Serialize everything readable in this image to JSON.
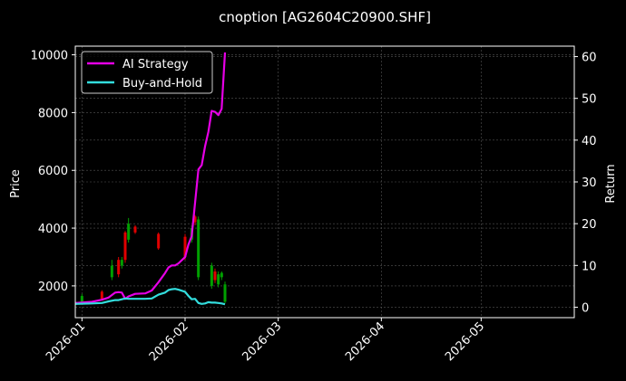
{
  "chart_data": {
    "type": "line",
    "title": "cnoption [AG2604C20900.SHF]",
    "ylabel_left": "Price",
    "ylabel_right": "Return",
    "x_ticks": [
      "2026-01",
      "2026-02",
      "2026-03",
      "2026-04",
      "2026-05"
    ],
    "y_left_ticks": [
      2000,
      4000,
      6000,
      8000,
      10000
    ],
    "y_right_ticks": [
      0,
      10,
      20,
      30,
      40,
      50,
      60
    ],
    "xlim": [
      "2025-12-30",
      "2026-05-29"
    ],
    "ylim_left": [
      900,
      10300
    ],
    "ylim_right": [
      -2.5,
      62.5
    ],
    "grid": true,
    "legend": {
      "placement": "top-left"
    },
    "colors": {
      "background": "#000000",
      "up_candle": "#00a000",
      "down_candle": "#e00000",
      "ai_strategy": "#e600e6",
      "buy_and_hold": "#33dddd",
      "grid": "#555555",
      "axis": "#ffffff"
    },
    "series": [
      {
        "name": "AI Strategy",
        "x": [
          "2025-12-30",
          "2026-01-04",
          "2026-01-07",
          "2026-01-09",
          "2026-01-11",
          "2026-01-12",
          "2026-01-13",
          "2026-01-14",
          "2026-01-15",
          "2026-01-17",
          "2026-01-20",
          "2026-01-22",
          "2026-01-24",
          "2026-01-26",
          "2026-01-27",
          "2026-01-28",
          "2026-01-29",
          "2026-01-30",
          "2026-02-01",
          "2026-02-02",
          "2026-02-03",
          "2026-02-04",
          "2026-02-05",
          "2026-02-06",
          "2026-02-07",
          "2026-02-08",
          "2026-02-09",
          "2026-02-10",
          "2026-02-11",
          "2026-02-12",
          "2026-02-13"
        ],
        "values": [
          1.0,
          1.3,
          1.8,
          2.3,
          3.5,
          3.6,
          3.5,
          2.0,
          2.6,
          3.2,
          3.3,
          4.0,
          6.0,
          8.2,
          9.5,
          10.0,
          10.0,
          10.5,
          12.0,
          15.0,
          17.0,
          25.0,
          33.0,
          34.0,
          38.5,
          42.0,
          47.0,
          46.8,
          46.0,
          47.5,
          61.0
        ]
      },
      {
        "name": "Buy-and-Hold",
        "x": [
          "2025-12-30",
          "2026-01-04",
          "2026-01-07",
          "2026-01-09",
          "2026-01-11",
          "2026-01-12",
          "2026-01-13",
          "2026-01-14",
          "2026-01-15",
          "2026-01-17",
          "2026-01-20",
          "2026-01-22",
          "2026-01-24",
          "2026-01-26",
          "2026-01-27",
          "2026-01-28",
          "2026-01-29",
          "2026-01-30",
          "2026-02-01",
          "2026-02-02",
          "2026-02-03",
          "2026-02-04",
          "2026-02-05",
          "2026-02-06",
          "2026-02-07",
          "2026-02-08",
          "2026-02-09",
          "2026-02-10",
          "2026-02-11",
          "2026-02-12",
          "2026-02-13"
        ],
        "values": [
          0.8,
          0.9,
          1.0,
          1.4,
          1.7,
          1.7,
          1.9,
          2.1,
          2.0,
          2.0,
          2.0,
          2.1,
          3.0,
          3.5,
          4.1,
          4.3,
          4.4,
          4.2,
          3.7,
          2.7,
          1.9,
          2.0,
          1.0,
          0.8,
          0.9,
          1.2,
          1.1,
          1.1,
          1.0,
          0.9,
          0.7
        ]
      }
    ],
    "candles": [
      {
        "date": "2026-01-01",
        "open": 1450,
        "close": 1650,
        "high": 1720,
        "low": 1400
      },
      {
        "date": "2026-01-07",
        "open": 1800,
        "close": 1550,
        "high": 1850,
        "low": 1500
      },
      {
        "date": "2026-01-10",
        "open": 2300,
        "close": 2700,
        "high": 2900,
        "low": 2200
      },
      {
        "date": "2026-01-12",
        "open": 2900,
        "close": 2400,
        "high": 3000,
        "low": 2300
      },
      {
        "date": "2026-01-13",
        "open": 2700,
        "close": 2900,
        "high": 3000,
        "low": 2600
      },
      {
        "date": "2026-01-14",
        "open": 3850,
        "close": 2900,
        "high": 3900,
        "low": 2800
      },
      {
        "date": "2026-01-15",
        "open": 3600,
        "close": 4150,
        "high": 4350,
        "low": 3500
      },
      {
        "date": "2026-01-17",
        "open": 4050,
        "close": 3850,
        "high": 4100,
        "low": 3800
      },
      {
        "date": "2026-01-24",
        "open": 3800,
        "close": 3300,
        "high": 3850,
        "low": 3250
      },
      {
        "date": "2026-02-01",
        "open": 3700,
        "close": 3000,
        "high": 3800,
        "low": 2900
      },
      {
        "date": "2026-02-03",
        "open": 3600,
        "close": 4000,
        "high": 4100,
        "low": 3500
      },
      {
        "date": "2026-02-04",
        "open": 4400,
        "close": 4200,
        "high": 4450,
        "low": 4100
      },
      {
        "date": "2026-02-05",
        "open": 2300,
        "close": 4300,
        "high": 4400,
        "low": 2200
      },
      {
        "date": "2026-02-09",
        "open": 2000,
        "close": 2700,
        "high": 2800,
        "low": 1900
      },
      {
        "date": "2026-02-10",
        "open": 2500,
        "close": 2200,
        "high": 2600,
        "low": 2100
      },
      {
        "date": "2026-02-11",
        "open": 2050,
        "close": 2400,
        "high": 2500,
        "low": 1950
      },
      {
        "date": "2026-02-12",
        "open": 2300,
        "close": 2450,
        "high": 2500,
        "low": 2200
      },
      {
        "date": "2026-02-13",
        "open": 1450,
        "close": 2050,
        "high": 2150,
        "low": 1400
      }
    ]
  }
}
